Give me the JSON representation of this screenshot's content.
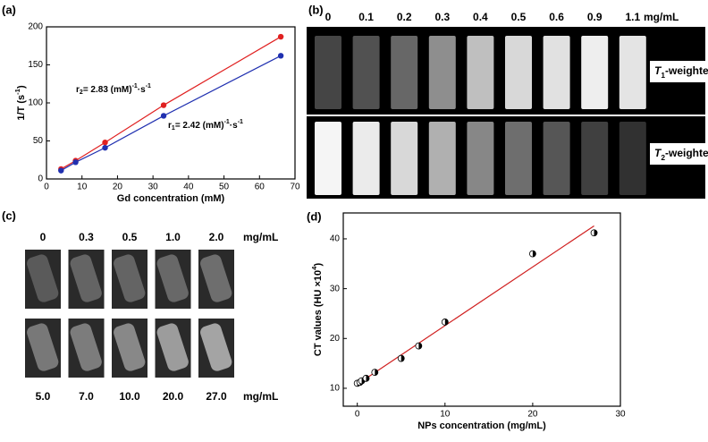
{
  "chart_data": [
    {
      "type": "line",
      "panel_label": "(a)",
      "x_label": "Gd concentration (mM)",
      "y_label_parts": [
        "1/T (s",
        "-1",
        ")"
      ],
      "x": [
        4.1,
        8.2,
        16.5,
        33,
        66
      ],
      "series": [
        {
          "color": "#e02020",
          "values": [
            13,
            24,
            48,
            97,
            187
          ]
        },
        {
          "color": "#2030b0",
          "values": [
            11,
            22,
            41,
            83,
            162
          ]
        }
      ],
      "annotations": [
        {
          "parts": [
            "r",
            "2",
            "= 2.83 (mM)",
            "-1",
            "·s",
            "-1"
          ]
        },
        {
          "parts": [
            "r",
            "1",
            "= 2.42 (mM)",
            "-1",
            "·s",
            "-1"
          ]
        }
      ],
      "xlim": [
        0,
        70
      ],
      "xticks": [
        0,
        10,
        20,
        30,
        40,
        50,
        60,
        70
      ],
      "ylim": [
        0,
        200
      ],
      "yticks": [
        0,
        50,
        100,
        150,
        200
      ]
    },
    {
      "type": "scatter",
      "panel_label": "(d)",
      "x_label": "NPs concentration (mg/mL)",
      "y_label_parts": [
        "CT values (HU ×10",
        "4",
        ")"
      ],
      "x": [
        0,
        0.3,
        0.5,
        1,
        2,
        5,
        7,
        10,
        20,
        27
      ],
      "values": [
        11,
        11.2,
        11.5,
        12,
        13.2,
        16,
        18.5,
        23.3,
        37,
        41.2
      ],
      "color": "#000000",
      "fit_line": {
        "color": "#d02020",
        "x": [
          0,
          27
        ],
        "values": [
          10.8,
          42.6
        ]
      },
      "xlim": [
        -1.6,
        30
      ],
      "xticks": [
        0,
        10,
        20,
        30
      ],
      "ylim": [
        6.4,
        45.2
      ],
      "yticks": [
        10,
        20,
        30,
        40
      ]
    }
  ],
  "mri_panel": {
    "label": "(b)",
    "concentrations": [
      "0",
      "0.1",
      "0.2",
      "0.3",
      "0.4",
      "0.5",
      "0.6",
      "0.9",
      "1.1"
    ],
    "unit": "mg/mL",
    "rows": [
      {
        "parts": [
          "T",
          "1",
          "-weighted"
        ]
      },
      {
        "parts": [
          "T",
          "2",
          "-weighted"
        ]
      }
    ]
  },
  "ct_panel": {
    "label": "(c)",
    "top": [
      "0",
      "0.3",
      "0.5",
      "1.0",
      "2.0"
    ],
    "top_unit": "mg/mL",
    "bottom": [
      "5.0",
      "7.0",
      "10.0",
      "20.0",
      "27.0"
    ],
    "bottom_unit": "mg/mL"
  }
}
